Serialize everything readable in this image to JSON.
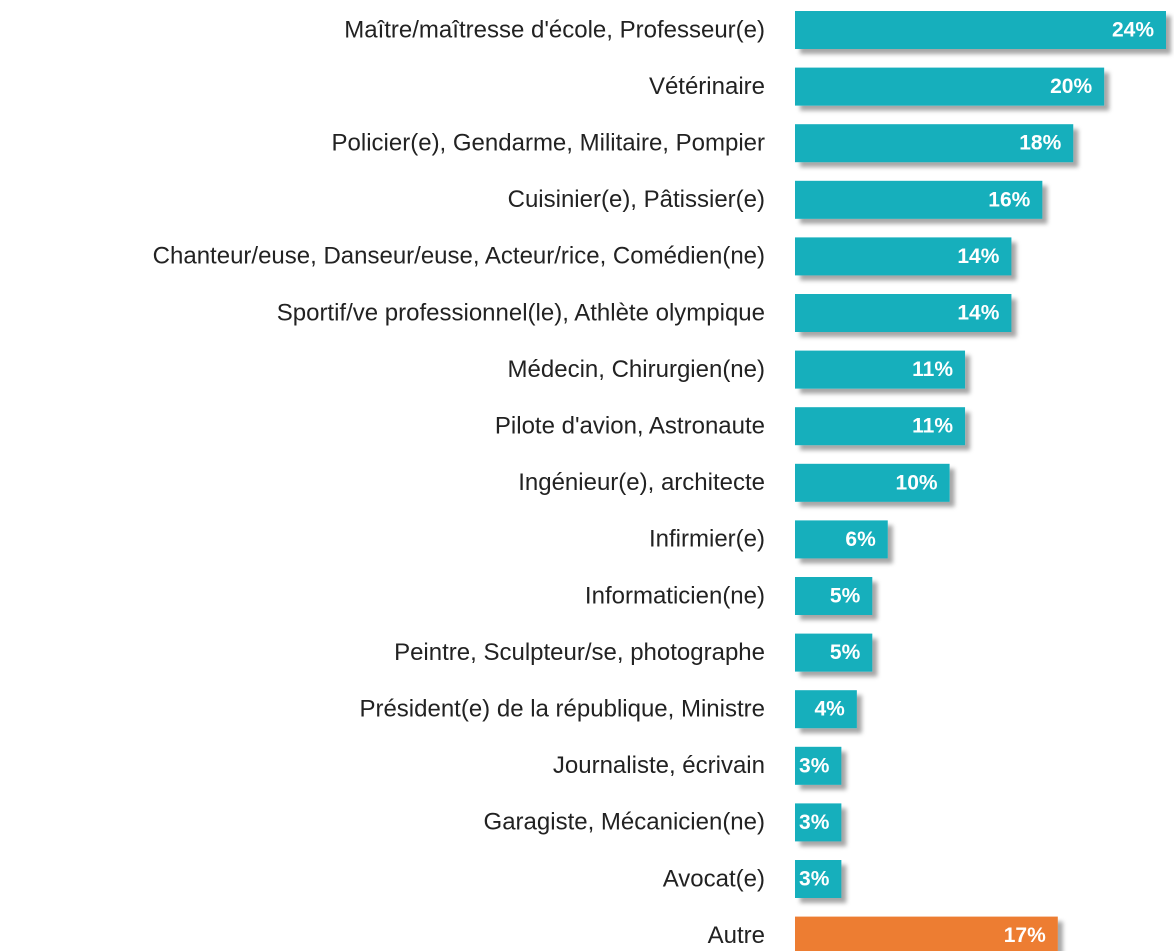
{
  "chart_data": {
    "type": "bar",
    "orientation": "horizontal",
    "categories": [
      "Maître/maîtresse d'école, Professeur(e)",
      "Vétérinaire",
      "Policier(e), Gendarme, Militaire, Pompier",
      "Cuisinier(e), Pâtissier(e)",
      "Chanteur/euse, Danseur/euse, Acteur/rice, Comédien(ne)",
      "Sportif/ve professionnel(le), Athlète olympique",
      "Médecin, Chirurgien(ne)",
      "Pilote d'avion, Astronaute",
      "Ingénieur(e), architecte",
      "Infirmier(e)",
      "Informaticien(ne)",
      "Peintre, Sculpteur/se, photographe",
      "Président(e) de la république, Ministre",
      "Journaliste, écrivain",
      "Garagiste, Mécanicien(ne)",
      "Avocat(e)",
      "Autre"
    ],
    "values": [
      24,
      20,
      18,
      16,
      14,
      14,
      11,
      11,
      10,
      6,
      5,
      5,
      4,
      3,
      3,
      3,
      17
    ],
    "value_labels": [
      "24%",
      "20%",
      "18%",
      "16%",
      "14%",
      "14%",
      "11%",
      "11%",
      "10%",
      "6%",
      "5%",
      "5%",
      "4%",
      "3%",
      "3%",
      "3%",
      "17%"
    ],
    "colors": [
      "#17afbc",
      "#17afbc",
      "#17afbc",
      "#17afbc",
      "#17afbc",
      "#17afbc",
      "#17afbc",
      "#17afbc",
      "#17afbc",
      "#17afbc",
      "#17afbc",
      "#17afbc",
      "#17afbc",
      "#17afbc",
      "#17afbc",
      "#17afbc",
      "#ed7d31"
    ]
  }
}
